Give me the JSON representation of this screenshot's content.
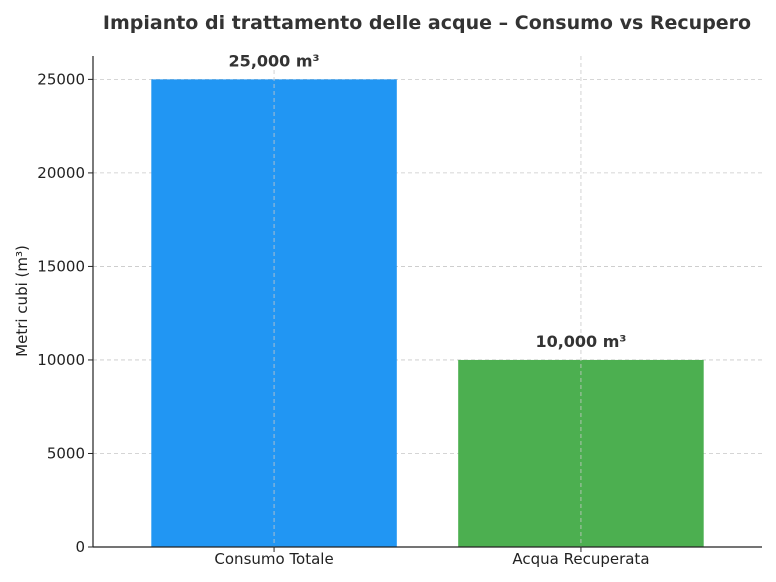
{
  "chart_data": {
    "type": "bar",
    "title": "Impianto di trattamento delle acque – Consumo vs Recupero",
    "xlabel": "",
    "ylabel": "Metri cubi (m³)",
    "categories": [
      "Consumo Totale",
      "Acqua Recuperata"
    ],
    "values": [
      25000,
      10000
    ],
    "data_labels": [
      "25,000 m³",
      "10,000 m³"
    ],
    "colors": [
      "#2196F3",
      "#4CAF50"
    ],
    "ylim": [
      0,
      26250
    ],
    "y_ticks": [
      0,
      5000,
      10000,
      15000,
      20000,
      25000
    ],
    "y_tick_labels": [
      "0",
      "5000",
      "10000",
      "15000",
      "20000",
      "25000"
    ],
    "grid": true
  }
}
